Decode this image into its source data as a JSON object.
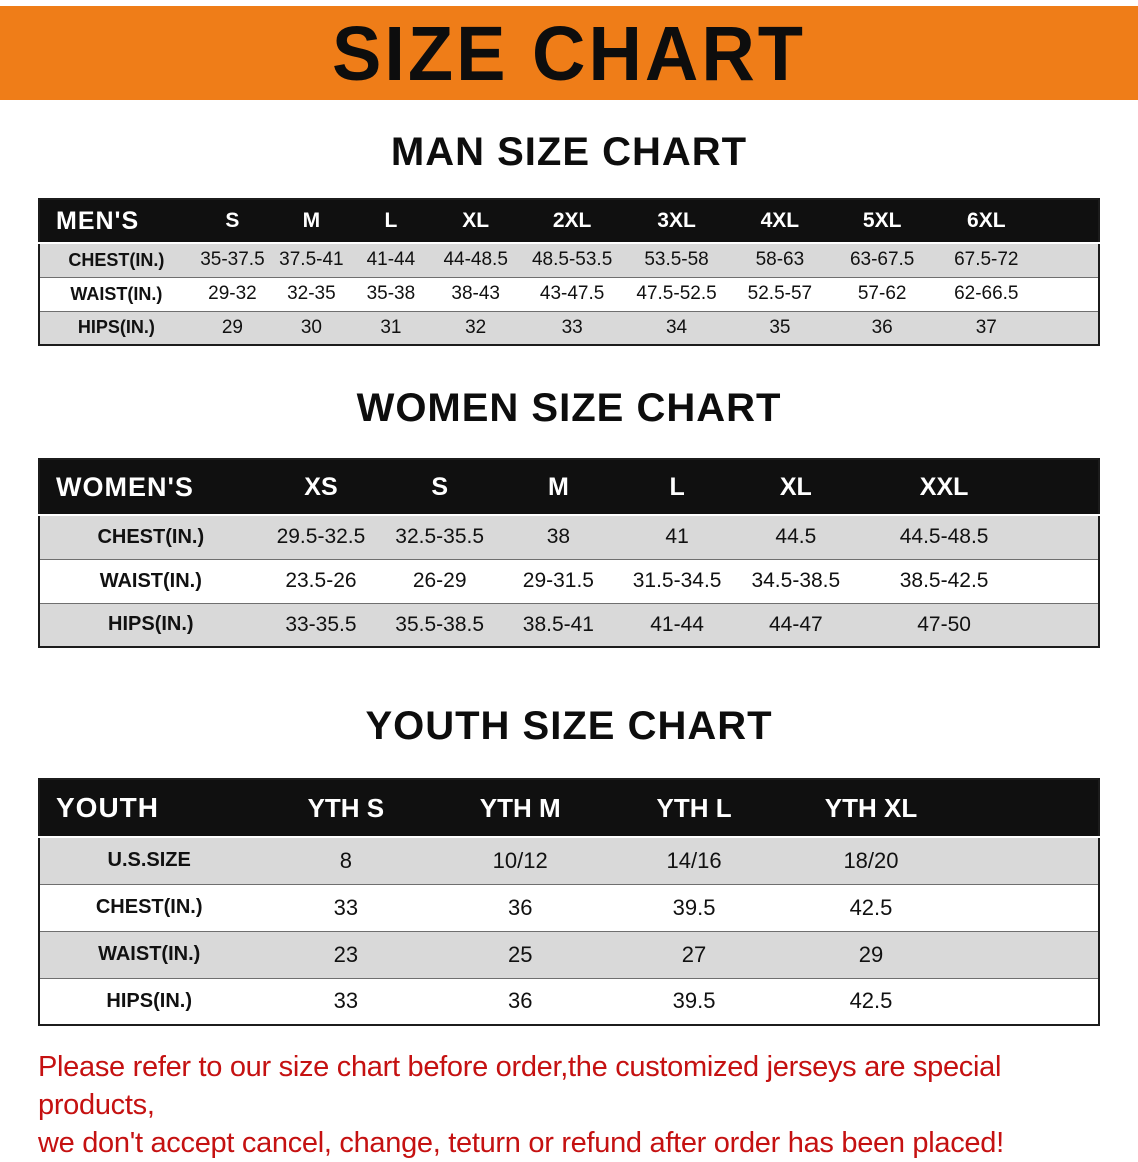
{
  "banner": {
    "title": "SIZE CHART"
  },
  "sections": [
    {
      "heading": "MAN SIZE CHART",
      "corner_label": "MEN'S",
      "columns": [
        "S",
        "M",
        "L",
        "XL",
        "2XL",
        "3XL",
        "4XL",
        "5XL",
        "6XL"
      ],
      "rows": [
        {
          "label": "CHEST(IN.)",
          "values": [
            "35-37.5",
            "37.5-41",
            "41-44",
            "44-48.5",
            "48.5-53.5",
            "53.5-58",
            "58-63",
            "63-67.5",
            "67.5-72"
          ]
        },
        {
          "label": "WAIST(IN.)",
          "values": [
            "29-32",
            "32-35",
            "35-38",
            "38-43",
            "43-47.5",
            "47.5-52.5",
            "52.5-57",
            "57-62",
            "62-66.5"
          ]
        },
        {
          "label": "HIPS(IN.)",
          "values": [
            "29",
            "30",
            "31",
            "32",
            "33",
            "34",
            "35",
            "36",
            "37"
          ]
        }
      ]
    },
    {
      "heading": "WOMEN SIZE CHART",
      "corner_label": "WOMEN'S",
      "columns": [
        "XS",
        "S",
        "M",
        "L",
        "XL",
        "XXL"
      ],
      "rows": [
        {
          "label": "CHEST(IN.)",
          "values": [
            "29.5-32.5",
            "32.5-35.5",
            "38",
            "41",
            "44.5",
            "44.5-48.5"
          ]
        },
        {
          "label": "WAIST(IN.)",
          "values": [
            "23.5-26",
            "26-29",
            "29-31.5",
            "31.5-34.5",
            "34.5-38.5",
            "38.5-42.5"
          ]
        },
        {
          "label": "HIPS(IN.)",
          "values": [
            "33-35.5",
            "35.5-38.5",
            "38.5-41",
            "41-44",
            "44-47",
            "47-50"
          ]
        }
      ]
    },
    {
      "heading": "YOUTH SIZE CHART",
      "corner_label": "YOUTH",
      "columns": [
        "YTH S",
        "YTH M",
        "YTH L",
        "YTH XL"
      ],
      "rows": [
        {
          "label": "U.S.SIZE",
          "values": [
            "8",
            "10/12",
            "14/16",
            "18/20"
          ]
        },
        {
          "label": "CHEST(IN.)",
          "values": [
            "33",
            "36",
            "39.5",
            "42.5"
          ]
        },
        {
          "label": "WAIST(IN.)",
          "values": [
            "23",
            "25",
            "27",
            "29"
          ]
        },
        {
          "label": "HIPS(IN.)",
          "values": [
            "33",
            "36",
            "39.5",
            "42.5"
          ]
        }
      ]
    }
  ],
  "disclaimer": {
    "line1": "Please refer to our size chart before order,the customized jerseys are special products,",
    "line2": "we don't accept cancel, change, teturn or refund after order has been placed!"
  },
  "colors": {
    "banner_bg": "#EF7D18",
    "header_bg": "#101010",
    "row_alt_bg": "#D9D9D9",
    "disclaimer_text": "#C51111"
  }
}
